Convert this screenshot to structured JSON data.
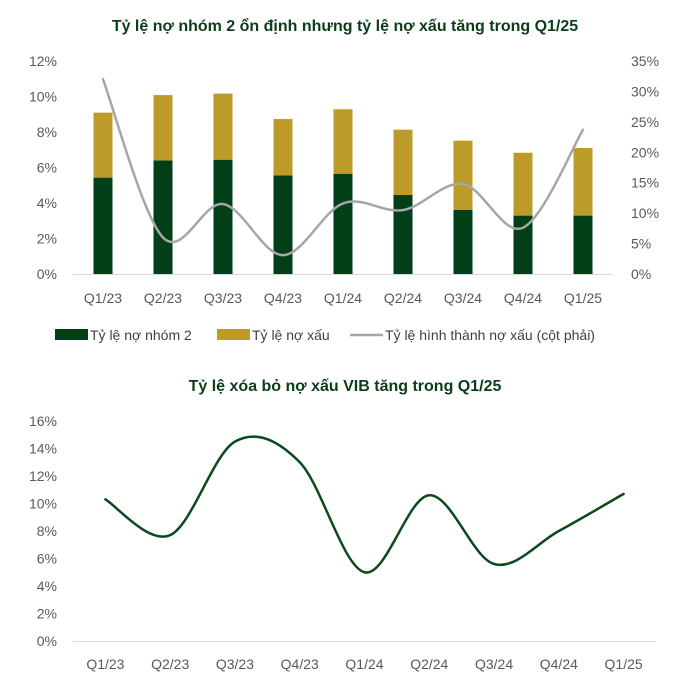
{
  "colors": {
    "title": "#0b3d1a",
    "group2": "#003f17",
    "npl": "#bc9b28",
    "formation": "#a6a6a6",
    "writeoff": "#0b4a1c",
    "axis": "#d9d9d9",
    "tick_text": "#595959"
  },
  "chart_data": [
    {
      "type": "bar",
      "stacked": true,
      "title": "Tỷ lệ nợ nhóm 2 ổn định nhưng tỷ lệ nợ xấu tăng trong Q1/25",
      "categories": [
        "Q1/23",
        "Q2/23",
        "Q3/23",
        "Q4/23",
        "Q1/24",
        "Q2/24",
        "Q3/24",
        "Q4/24",
        "Q1/25"
      ],
      "series": [
        {
          "name": "Tỷ lệ nợ nhóm 2",
          "kind": "bar",
          "axis": "left",
          "values": [
            5.43,
            6.4,
            6.44,
            5.56,
            5.65,
            4.45,
            3.62,
            3.29,
            3.29
          ]
        },
        {
          "name": "Tỷ lệ nợ xấu",
          "kind": "bar",
          "axis": "left",
          "values": [
            3.66,
            3.68,
            3.72,
            3.17,
            3.63,
            3.68,
            3.89,
            3.54,
            3.81
          ]
        },
        {
          "name": "Tỷ lệ hình thành nợ xấu (cột phải)",
          "kind": "line",
          "axis": "right",
          "smooth": true,
          "values": [
            32.0,
            6.0,
            11.5,
            3.1,
            11.6,
            10.5,
            14.8,
            7.6,
            23.7
          ]
        }
      ],
      "y_left": {
        "ylim": [
          0,
          12
        ],
        "ticks": [
          0,
          2,
          4,
          6,
          8,
          10,
          12
        ],
        "labels": [
          "0%",
          "2%",
          "4%",
          "6%",
          "8%",
          "10%",
          "12%"
        ]
      },
      "y_right": {
        "ylim": [
          0,
          35
        ],
        "ticks": [
          0,
          5,
          10,
          15,
          20,
          25,
          30,
          35
        ],
        "labels": [
          "0%",
          "5%",
          "10%",
          "15%",
          "20%",
          "25%",
          "30%",
          "35%"
        ]
      },
      "xlabel": "",
      "ylabel": "",
      "grid": false,
      "legend_position": "bottom"
    },
    {
      "type": "line",
      "title": "Tỷ lệ xóa bỏ nợ xấu VIB tăng trong Q1/25",
      "categories": [
        "Q1/23",
        "Q2/23",
        "Q3/23",
        "Q4/23",
        "Q1/24",
        "Q2/24",
        "Q3/24",
        "Q4/24",
        "Q1/25"
      ],
      "series": [
        {
          "name": "Tỷ lệ xóa bỏ nợ xấu",
          "smooth": true,
          "values": [
            10.3,
            7.7,
            14.5,
            13.0,
            5.0,
            10.6,
            5.6,
            8.0,
            10.7
          ]
        }
      ],
      "y": {
        "ylim": [
          0,
          16
        ],
        "ticks": [
          0,
          2,
          4,
          6,
          8,
          10,
          12,
          14,
          16
        ],
        "labels": [
          "0%",
          "2%",
          "4%",
          "6%",
          "8%",
          "10%",
          "12%",
          "14%",
          "16%"
        ]
      },
      "xlabel": "",
      "ylabel": "",
      "grid": false,
      "legend_position": "none"
    }
  ]
}
